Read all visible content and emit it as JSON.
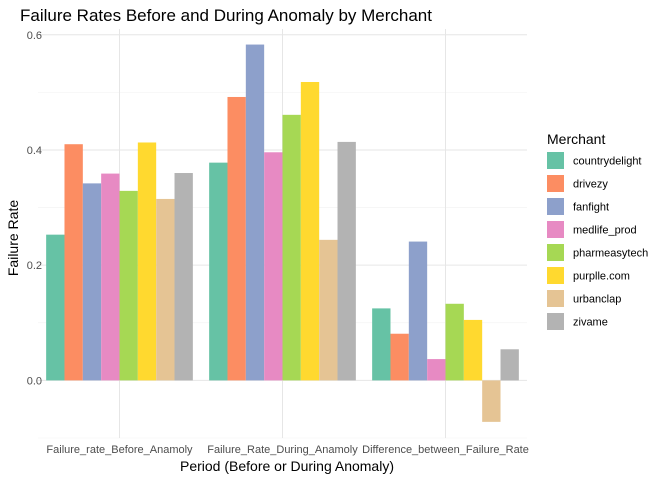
{
  "chart_data": {
    "type": "bar",
    "title": "Failure Rates Before and During Anomaly by Merchant",
    "xlabel": "Period (Before or During Anomaly)",
    "ylabel": "Failure Rate",
    "ylim": [
      -0.1,
      0.61
    ],
    "yticks": [
      "0.0",
      "0.2",
      "0.4",
      "0.6"
    ],
    "ytick_values": [
      0.0,
      0.2,
      0.4,
      0.6
    ],
    "grid": true,
    "legend_title": "Merchant",
    "legend_position": "right",
    "categories": [
      "Failure_rate_Before_Anamoly",
      "Failure_Rate_During_Anamoly",
      "Difference_between_Failure_Rate"
    ],
    "series": [
      {
        "name": "countrydelight",
        "color": "#66c2a5",
        "values": [
          0.253,
          0.378,
          0.125
        ]
      },
      {
        "name": "drivezy",
        "color": "#fc8d62",
        "values": [
          0.41,
          0.492,
          0.081
        ]
      },
      {
        "name": "fanfight",
        "color": "#8da0cb",
        "values": [
          0.342,
          0.583,
          0.241
        ]
      },
      {
        "name": "medlife_prod",
        "color": "#e78ac3",
        "values": [
          0.359,
          0.396,
          0.037
        ]
      },
      {
        "name": "pharmeasytech",
        "color": "#a6d854",
        "values": [
          0.329,
          0.461,
          0.133
        ]
      },
      {
        "name": "purplle.com",
        "color": "#ffd92f",
        "values": [
          0.413,
          0.518,
          0.105
        ]
      },
      {
        "name": "urbanclap",
        "color": "#e5c494",
        "values": [
          0.315,
          0.244,
          -0.072
        ]
      },
      {
        "name": "zivame",
        "color": "#b3b3b3",
        "values": [
          0.36,
          0.414,
          0.054
        ]
      }
    ]
  }
}
